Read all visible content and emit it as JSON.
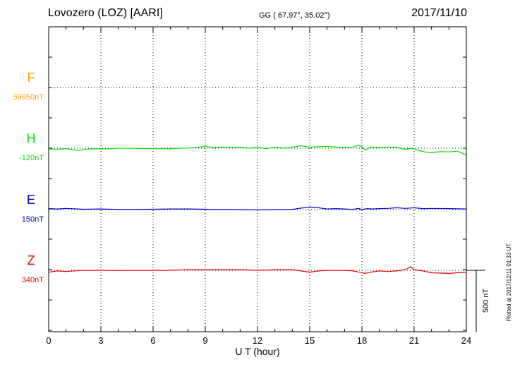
{
  "header": {
    "station": "Lovozero (LOZ)  [AARI]",
    "coords": "GG ( 67.97°,  35.02°)",
    "date": "2017/11/10"
  },
  "footer": {
    "xlabel": "U T (hour)",
    "plotted": "Plotted at 2017/12/11 01:33 UT",
    "scale_label": "500 nT",
    "scale_nT": 500
  },
  "chart_data": {
    "type": "line",
    "x_ticks": [
      "0",
      "3",
      "6",
      "9",
      "12",
      "15",
      "18",
      "21",
      "24"
    ],
    "xlim": [
      0,
      24
    ],
    "xlabel": "U T (hour)",
    "grid": true,
    "series": [
      {
        "name": "F",
        "baseline_label": "59950nT",
        "color": "#FFA500",
        "x": [],
        "y": []
      },
      {
        "name": "H",
        "baseline_label": "-120nT",
        "color": "#00E000",
        "x": [
          0,
          0.5,
          1.0,
          1.5,
          1.8,
          2.0,
          2.5,
          3.0,
          3.5,
          4.0,
          4.5,
          5.0,
          6.0,
          7.0,
          7.5,
          8.0,
          8.5,
          9.0,
          9.5,
          10.0,
          10.5,
          11.0,
          11.5,
          12.0,
          12.5,
          13.0,
          13.5,
          14.0,
          14.5,
          15.0,
          15.5,
          16.0,
          16.5,
          17.0,
          17.5,
          17.8,
          18.0,
          18.2,
          18.5,
          19.0,
          19.5,
          20.0,
          20.5,
          20.8,
          21.0,
          21.3,
          21.6,
          22.0,
          22.5,
          23.0,
          23.5,
          24.0
        ],
        "y": [
          -5,
          -10,
          -3,
          -15,
          -18,
          -10,
          -5,
          -6,
          -5,
          0,
          0,
          -2,
          -3,
          -5,
          0,
          2,
          5,
          15,
          5,
          10,
          5,
          8,
          0,
          10,
          -5,
          10,
          0,
          8,
          20,
          8,
          12,
          15,
          10,
          5,
          10,
          25,
          10,
          -15,
          10,
          5,
          10,
          5,
          -10,
          0,
          -5,
          -20,
          -30,
          -35,
          -28,
          -30,
          -25,
          -55
        ]
      },
      {
        "name": "E",
        "baseline_label": "150nT",
        "color": "#0000CC",
        "x": [
          0,
          0.5,
          1.0,
          2.0,
          3.0,
          4.0,
          5.0,
          6.0,
          7.0,
          8.0,
          9.0,
          9.5,
          10.0,
          11.0,
          12.0,
          13.0,
          14.0,
          14.5,
          15.0,
          15.5,
          16.0,
          16.5,
          17.0,
          17.5,
          17.8,
          18.0,
          18.3,
          18.6,
          19.0,
          19.5,
          20.0,
          20.5,
          21.0,
          21.5,
          22.0,
          23.0,
          24.0
        ],
        "y": [
          8,
          5,
          10,
          3,
          5,
          2,
          2,
          3,
          5,
          5,
          3,
          0,
          2,
          0,
          -2,
          0,
          2,
          12,
          22,
          15,
          5,
          8,
          5,
          2,
          10,
          0,
          8,
          5,
          8,
          10,
          15,
          10,
          15,
          8,
          10,
          8,
          5
        ]
      },
      {
        "name": "Z",
        "baseline_label": "340nT",
        "color": "#EE0000",
        "x": [
          0,
          0.5,
          1.0,
          2.0,
          3.0,
          4.0,
          5.0,
          6.0,
          7.0,
          8.0,
          9.0,
          10.0,
          11.0,
          12.0,
          13.0,
          14.0,
          14.5,
          15.0,
          15.5,
          16.0,
          17.0,
          17.5,
          18.0,
          18.2,
          18.5,
          19.0,
          19.5,
          20.0,
          20.5,
          20.8,
          21.0,
          21.5,
          22.0,
          23.0,
          23.5,
          24.0
        ],
        "y": [
          -15,
          -5,
          -10,
          0,
          0,
          -2,
          0,
          0,
          0,
          5,
          5,
          5,
          5,
          0,
          5,
          5,
          -5,
          -15,
          -5,
          0,
          0,
          -5,
          -20,
          -25,
          -15,
          -5,
          -10,
          -5,
          5,
          30,
          5,
          -5,
          -20,
          -25,
          -20,
          -15
        ]
      }
    ]
  }
}
